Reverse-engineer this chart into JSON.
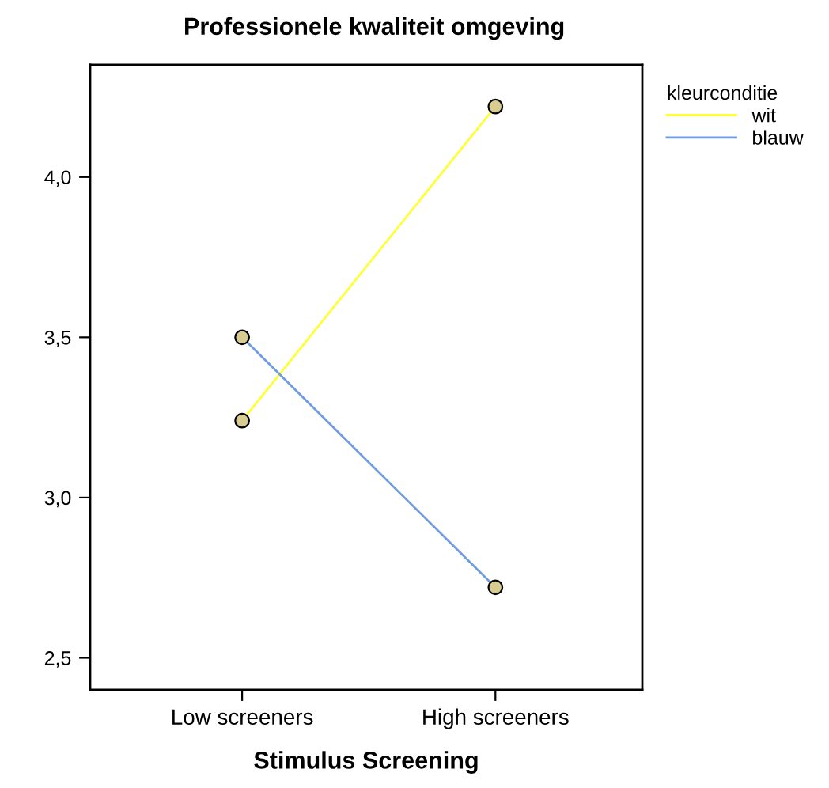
{
  "chart_data": {
    "type": "line",
    "title": "Professionele kwaliteit omgeving",
    "xlabel": "Stimulus Screening",
    "categories": [
      "Low screeners",
      "High screeners"
    ],
    "series": [
      {
        "name": "wit",
        "color": "#ffff33",
        "values": [
          3.24,
          4.22
        ]
      },
      {
        "name": "blauw",
        "color": "#6f9be0",
        "values": [
          3.5,
          2.72
        ]
      }
    ],
    "legend_title": "kleurconditie",
    "legend": "top right",
    "marker": "circle",
    "line_style": "solid",
    "grid": false,
    "ylim": [
      2.4,
      4.35
    ],
    "yticks": [
      {
        "value": 2.5,
        "label": "2,5"
      },
      {
        "value": 3.0,
        "label": "3,0"
      },
      {
        "value": 3.5,
        "label": "3,5"
      },
      {
        "value": 4.0,
        "label": "4,0"
      }
    ]
  }
}
